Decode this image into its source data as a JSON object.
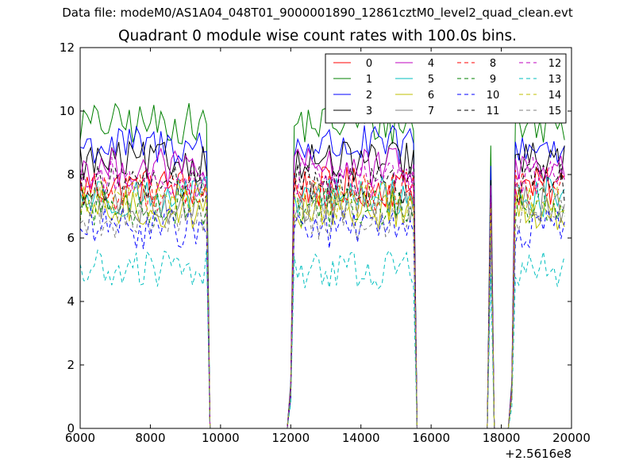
{
  "figure": {
    "suptitle": "Data file: modeM0/AS1A04_048T01_9000001890_12861cztM0_level2_quad_clean.evt",
    "title": "Quadrant 0 module wise count rates with 100.0s bins.",
    "x_offset_label": "+2.5616e8"
  },
  "chart_data": {
    "type": "line",
    "title": "Quadrant 0 module wise count rates with 100.0s bins.",
    "xlabel": "",
    "ylabel": "",
    "x_offset": "+2.5616e8",
    "xlim": [
      6000,
      20000
    ],
    "ylim": [
      0,
      12
    ],
    "xticks": [
      6000,
      8000,
      10000,
      12000,
      14000,
      16000,
      18000,
      20000
    ],
    "yticks": [
      0,
      2,
      4,
      6,
      8,
      10,
      12
    ],
    "xtick_labels": [
      "6000",
      "8000",
      "10000",
      "12000",
      "14000",
      "16000",
      "18000",
      "20000"
    ],
    "ytick_labels": [
      "0",
      "2",
      "4",
      "6",
      "8",
      "10",
      "12"
    ],
    "grid": false,
    "legend_position": "top-right",
    "legend_columns": 4,
    "bin_width": 100,
    "segments": [
      {
        "start": 6000,
        "end": 9600,
        "edge": "left"
      },
      {
        "start": 12100,
        "end": 15500,
        "edge": "both"
      },
      {
        "start": 17700,
        "end": 17700,
        "edge": "spike"
      },
      {
        "start": 18400,
        "end": 19800,
        "edge": "right"
      }
    ],
    "series": [
      {
        "name": "0",
        "color": "#ff0000",
        "dash": "solid",
        "mean": 7.6
      },
      {
        "name": "1",
        "color": "#008000",
        "dash": "solid",
        "mean": 9.6
      },
      {
        "name": "2",
        "color": "#0000ff",
        "dash": "solid",
        "mean": 8.9
      },
      {
        "name": "3",
        "color": "#000000",
        "dash": "solid",
        "mean": 8.4
      },
      {
        "name": "4",
        "color": "#bf00bf",
        "dash": "solid",
        "mean": 8.2
      },
      {
        "name": "5",
        "color": "#00bfbf",
        "dash": "solid",
        "mean": 7.3
      },
      {
        "name": "6",
        "color": "#bfbf00",
        "dash": "solid",
        "mean": 6.9
      },
      {
        "name": "7",
        "color": "#808080",
        "dash": "solid",
        "mean": 7.1
      },
      {
        "name": "8",
        "color": "#ff0000",
        "dash": "dashed",
        "mean": 7.5
      },
      {
        "name": "9",
        "color": "#008000",
        "dash": "dashed",
        "mean": 7.0
      },
      {
        "name": "10",
        "color": "#0000ff",
        "dash": "dashed",
        "mean": 6.3
      },
      {
        "name": "11",
        "color": "#000000",
        "dash": "dashed",
        "mean": 7.7
      },
      {
        "name": "12",
        "color": "#bf00bf",
        "dash": "dashed",
        "mean": 7.9
      },
      {
        "name": "13",
        "color": "#00bfbf",
        "dash": "dashed",
        "mean": 5.0
      },
      {
        "name": "14",
        "color": "#bfbf00",
        "dash": "dashed",
        "mean": 7.2
      },
      {
        "name": "15",
        "color": "#808080",
        "dash": "dashed",
        "mean": 6.6
      }
    ]
  }
}
